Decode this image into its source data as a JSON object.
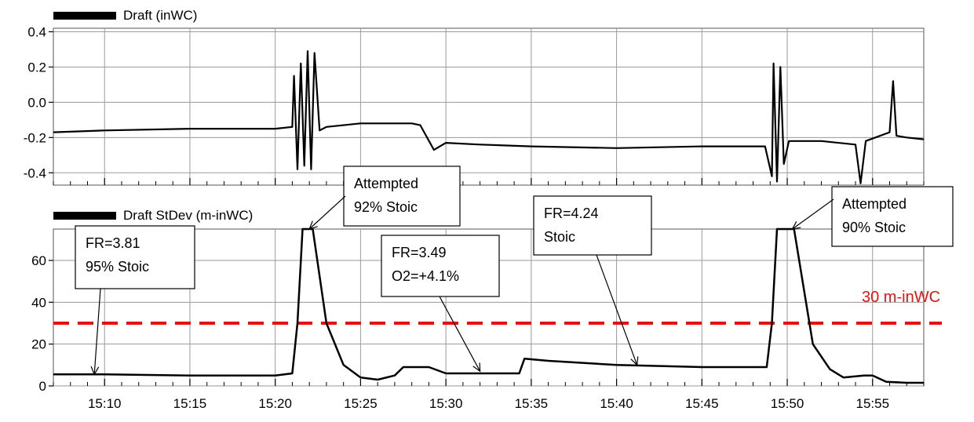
{
  "chart_data": [
    {
      "type": "line",
      "title": "",
      "legend": "Draft (inWC)",
      "xlabel": "",
      "ylabel": "",
      "xlim": [
        "15:07",
        "15:58"
      ],
      "ylim": [
        -0.47,
        0.42
      ],
      "xticks": [
        "15:10",
        "15:15",
        "15:20",
        "15:25",
        "15:30",
        "15:35",
        "15:40",
        "15:45",
        "15:50",
        "15:55"
      ],
      "yticks": [
        "0.4",
        "0.2",
        "0.0",
        "-0.2",
        "-0.4"
      ],
      "grid": true,
      "series": [
        {
          "name": "Draft (inWC)",
          "color": "#000000",
          "points": [
            [
              "15:07",
              -0.17
            ],
            [
              "15:10",
              -0.16
            ],
            [
              "15:15",
              -0.15
            ],
            [
              "15:20",
              -0.15
            ],
            [
              "15:21",
              -0.14
            ],
            [
              "15:21.1",
              0.15
            ],
            [
              "15:21.3",
              -0.38
            ],
            [
              "15:21.5",
              0.22
            ],
            [
              "15:21.7",
              -0.36
            ],
            [
              "15:21.9",
              0.29
            ],
            [
              "15:22.1",
              -0.38
            ],
            [
              "15:22.3",
              0.28
            ],
            [
              "15:22.6",
              -0.16
            ],
            [
              "15:23",
              -0.14
            ],
            [
              "15:25",
              -0.12
            ],
            [
              "15:28",
              -0.12
            ],
            [
              "15:28.5",
              -0.13
            ],
            [
              "15:29.3",
              -0.27
            ],
            [
              "15:30",
              -0.23
            ],
            [
              "15:32",
              -0.24
            ],
            [
              "15:35",
              -0.25
            ],
            [
              "15:40",
              -0.26
            ],
            [
              "15:45",
              -0.25
            ],
            [
              "15:48.7",
              -0.25
            ],
            [
              "15:49.1",
              -0.42
            ],
            [
              "15:49.2",
              0.22
            ],
            [
              "15:49.4",
              -0.45
            ],
            [
              "15:49.6",
              0.2
            ],
            [
              "15:49.8",
              -0.35
            ],
            [
              "15:50.1",
              -0.22
            ],
            [
              "15:52",
              -0.22
            ],
            [
              "15:54",
              -0.24
            ],
            [
              "15:54.3",
              -0.46
            ],
            [
              "15:54.6",
              -0.22
            ],
            [
              "15:56",
              -0.17
            ],
            [
              "15:56.2",
              0.12
            ],
            [
              "15:56.4",
              -0.19
            ],
            [
              "15:57",
              -0.2
            ],
            [
              "15:58",
              -0.21
            ]
          ]
        }
      ]
    },
    {
      "type": "line",
      "title": "",
      "legend": "Draft StDev (m-inWC)",
      "xlabel": "",
      "ylabel": "",
      "xlim": [
        "15:07",
        "15:58"
      ],
      "ylim": [
        0,
        75
      ],
      "xticks": [
        "15:10",
        "15:15",
        "15:20",
        "15:25",
        "15:30",
        "15:35",
        "15:40",
        "15:45",
        "15:50",
        "15:55"
      ],
      "yticks": [
        "60",
        "40",
        "20",
        "0"
      ],
      "grid": true,
      "series": [
        {
          "name": "Draft StDev (m-inWC)",
          "color": "#000000",
          "points": [
            [
              "15:07",
              5.5
            ],
            [
              "15:10",
              5.5
            ],
            [
              "15:15",
              5
            ],
            [
              "15:20",
              5
            ],
            [
              "15:21",
              6
            ],
            [
              "15:21.3",
              30
            ],
            [
              "15:21.6",
              75
            ],
            [
              "15:22.2",
              75
            ],
            [
              "15:23",
              30
            ],
            [
              "15:24",
              10
            ],
            [
              "15:25",
              4
            ],
            [
              "15:26",
              3
            ],
            [
              "15:27",
              5
            ],
            [
              "15:27.5",
              9
            ],
            [
              "15:29",
              9
            ],
            [
              "15:30",
              6
            ],
            [
              "15:33",
              6
            ],
            [
              "15:34.3",
              6
            ],
            [
              "15:34.6",
              13
            ],
            [
              "15:36",
              12
            ],
            [
              "15:40",
              10
            ],
            [
              "15:45",
              9
            ],
            [
              "15:48.8",
              9
            ],
            [
              "15:49.1",
              30
            ],
            [
              "15:49.4",
              75
            ],
            [
              "15:50.4",
              75
            ],
            [
              "15:51.5",
              20
            ],
            [
              "15:52.5",
              8
            ],
            [
              "15:53.3",
              4
            ],
            [
              "15:54.5",
              5
            ],
            [
              "15:55",
              5
            ],
            [
              "15:55.8",
              2
            ],
            [
              "15:57",
              1.5
            ],
            [
              "15:58",
              1.5
            ]
          ]
        }
      ],
      "threshold": {
        "value": 30,
        "label": "30 m-inWC",
        "color": "#e81010",
        "style": "dashed"
      },
      "annotations": [
        {
          "lines": [
            "FR=3.81",
            "95% Stoic"
          ],
          "points_to": [
            "15:09.4",
            5.5
          ]
        },
        {
          "lines": [
            "Attempted",
            "92% Stoic"
          ],
          "points_to": [
            "15:22",
            75
          ]
        },
        {
          "lines": [
            "FR=3.49",
            "O2=+4.1%"
          ],
          "points_to": [
            "15:32",
            7
          ]
        },
        {
          "lines": [
            "FR=4.24",
            "Stoic"
          ],
          "points_to": [
            "15:41.2",
            10
          ]
        },
        {
          "lines": [
            "Attempted",
            "90% Stoic"
          ],
          "points_to": [
            "15:50.3",
            75
          ]
        }
      ]
    }
  ]
}
